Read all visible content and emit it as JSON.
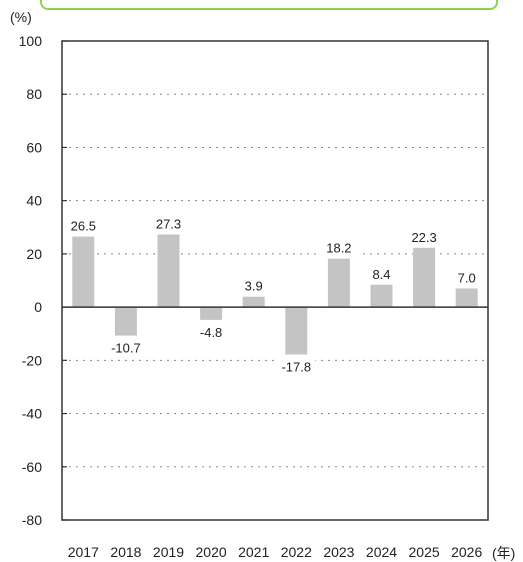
{
  "chart_data": {
    "type": "bar",
    "y_unit": "(%)",
    "x_unit": "(年)",
    "categories": [
      "2017",
      "2018",
      "2019",
      "2020",
      "2021",
      "2022",
      "2023",
      "2024",
      "2025",
      "2026"
    ],
    "values": [
      26.5,
      -10.7,
      27.3,
      -4.8,
      3.9,
      -17.8,
      18.2,
      8.4,
      22.3,
      7.0
    ],
    "value_labels": [
      "26.5",
      "-10.7",
      "27.3",
      "-4.8",
      "3.9",
      "-17.8",
      "18.2",
      "8.4",
      "22.3",
      "7.0"
    ],
    "ylim": [
      -80,
      100
    ],
    "yticks": [
      100,
      80,
      60,
      40,
      20,
      0,
      -20,
      -40,
      -60,
      -80
    ],
    "grid": true,
    "bar_color": "#c4c4c4",
    "accent_color": "#8fd14f"
  }
}
